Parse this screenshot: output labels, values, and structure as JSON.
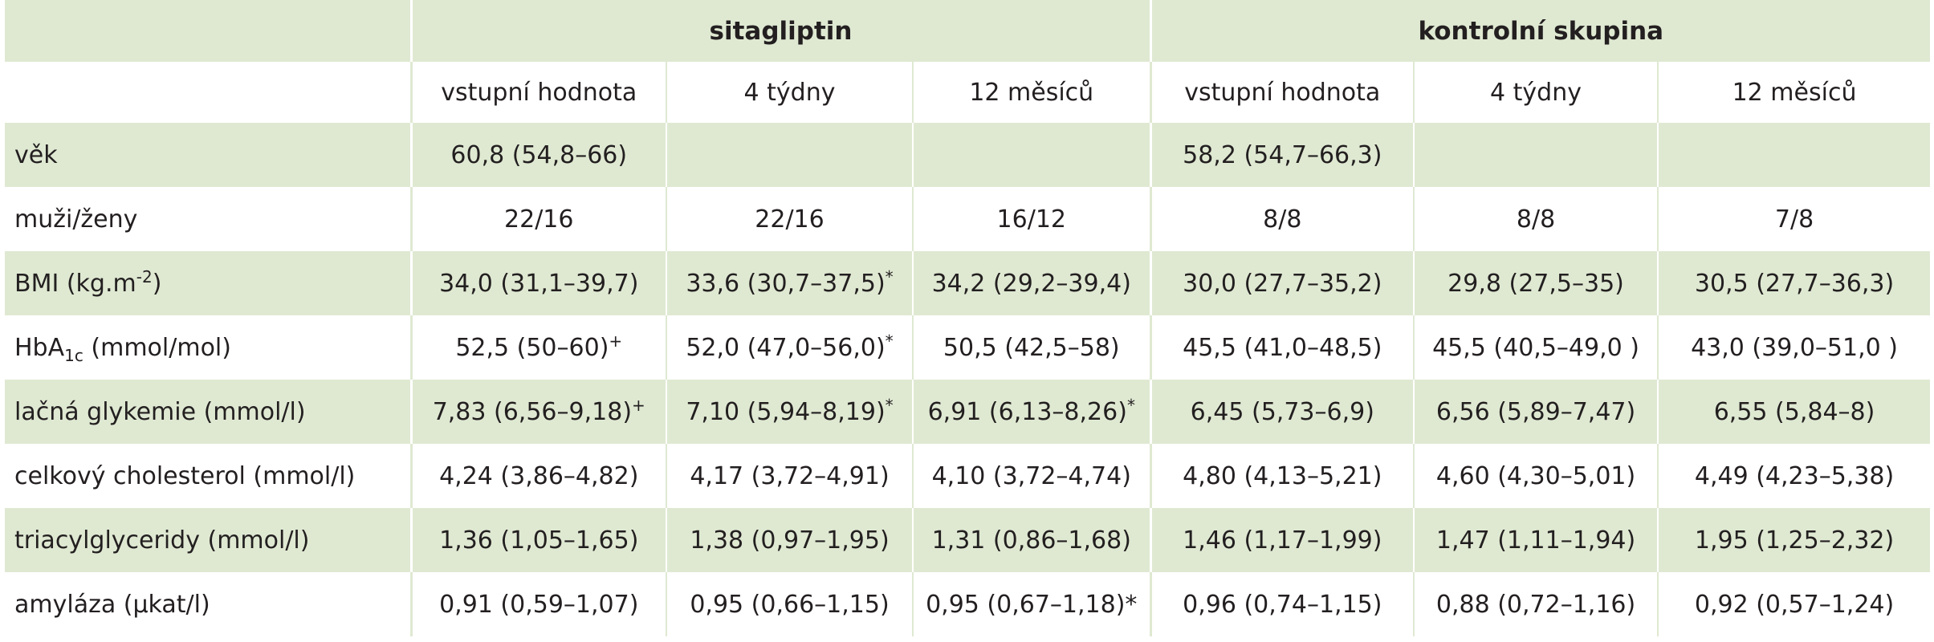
{
  "header": {
    "groups": [
      "sitagliptin",
      "kontrolní skupina"
    ],
    "timepoints": [
      "vstupní hodnota",
      "4 týdny",
      "12 měsíců",
      "vstupní hodnota",
      "4 týdny",
      "12 měsíců"
    ]
  },
  "rows": [
    {
      "label_pre": "věk",
      "label_sup": "",
      "label_sub": "",
      "label_post": "",
      "cells": [
        {
          "v": "60,8 (54,8–66)",
          "s": ""
        },
        {
          "v": "",
          "s": ""
        },
        {
          "v": "",
          "s": ""
        },
        {
          "v": "58,2 (54,7–66,3)",
          "s": ""
        },
        {
          "v": "",
          "s": ""
        },
        {
          "v": "",
          "s": ""
        }
      ]
    },
    {
      "label_pre": "muži/ženy",
      "label_sup": "",
      "label_sub": "",
      "label_post": "",
      "cells": [
        {
          "v": "22/16",
          "s": ""
        },
        {
          "v": "22/16",
          "s": ""
        },
        {
          "v": "16/12",
          "s": ""
        },
        {
          "v": "8/8",
          "s": ""
        },
        {
          "v": "8/8",
          "s": ""
        },
        {
          "v": "7/8",
          "s": ""
        }
      ]
    },
    {
      "label_pre": "BMI (kg.m",
      "label_sup": "-2",
      "label_sub": "",
      "label_post": ")",
      "cells": [
        {
          "v": "34,0 (31,1–39,7)",
          "s": ""
        },
        {
          "v": "33,6 (30,7–37,5)",
          "s": "*"
        },
        {
          "v": "34,2 (29,2–39,4)",
          "s": ""
        },
        {
          "v": "30,0 (27,7–35,2)",
          "s": ""
        },
        {
          "v": "29,8 (27,5–35)",
          "s": ""
        },
        {
          "v": "30,5 (27,7–36,3)",
          "s": ""
        }
      ]
    },
    {
      "label_pre": "HbA",
      "label_sup": "",
      "label_sub": "1c",
      "label_post": " (mmol/mol)",
      "cells": [
        {
          "v": "52,5 (50–60)",
          "s": "+"
        },
        {
          "v": "52,0 (47,0–56,0)",
          "s": "*"
        },
        {
          "v": "50,5 (42,5–58)",
          "s": ""
        },
        {
          "v": "45,5 (41,0–48,5)",
          "s": ""
        },
        {
          "v": "45,5 (40,5–49,0 )",
          "s": ""
        },
        {
          "v": "43,0 (39,0–51,0 )",
          "s": ""
        }
      ]
    },
    {
      "label_pre": "lačná glykemie (mmol/l)",
      "label_sup": "",
      "label_sub": "",
      "label_post": "",
      "cells": [
        {
          "v": "7,83 (6,56–9,18)",
          "s": "+"
        },
        {
          "v": "7,10 (5,94–8,19)",
          "s": "*"
        },
        {
          "v": "6,91 (6,13–8,26)",
          "s": "*"
        },
        {
          "v": "6,45 (5,73–6,9)",
          "s": ""
        },
        {
          "v": "6,56 (5,89–7,47)",
          "s": ""
        },
        {
          "v": "6,55 (5,84–8)",
          "s": ""
        }
      ]
    },
    {
      "label_pre": "celkový cholesterol (mmol/l)",
      "label_sup": "",
      "label_sub": "",
      "label_post": "",
      "cells": [
        {
          "v": "4,24 (3,86–4,82)",
          "s": ""
        },
        {
          "v": "4,17 (3,72–4,91)",
          "s": ""
        },
        {
          "v": "4,10 (3,72–4,74)",
          "s": ""
        },
        {
          "v": "4,80 (4,13–5,21)",
          "s": ""
        },
        {
          "v": "4,60 (4,30–5,01)",
          "s": ""
        },
        {
          "v": "4,49 (4,23–5,38)",
          "s": ""
        }
      ]
    },
    {
      "label_pre": "triacylglyceridy (mmol/l)",
      "label_sup": "",
      "label_sub": "",
      "label_post": "",
      "cells": [
        {
          "v": "1,36 (1,05–1,65)",
          "s": ""
        },
        {
          "v": "1,38 (0,97–1,95)",
          "s": ""
        },
        {
          "v": "1,31 (0,86–1,68)",
          "s": ""
        },
        {
          "v": "1,46 (1,17–1,99)",
          "s": ""
        },
        {
          "v": "1,47 (1,11–1,94)",
          "s": ""
        },
        {
          "v": "1,95 (1,25–2,32)",
          "s": ""
        }
      ]
    },
    {
      "label_pre": "amyláza (µkat/l)",
      "label_sup": "",
      "label_sub": "",
      "label_post": "",
      "cells": [
        {
          "v": "0,91 (0,59–1,07)",
          "s": ""
        },
        {
          "v": "0,95 (0,66–1,15)",
          "s": ""
        },
        {
          "v": "0,95 (0,67–1,18)*",
          "s": ""
        },
        {
          "v": "0,96 (0,74–1,15)",
          "s": ""
        },
        {
          "v": "0,88 (0,72–1,16)",
          "s": ""
        },
        {
          "v": "0,92 (0,57–1,24)",
          "s": ""
        }
      ]
    }
  ],
  "colors": {
    "shade": "#dfe9d2",
    "white": "#ffffff",
    "text": "#231f20"
  }
}
